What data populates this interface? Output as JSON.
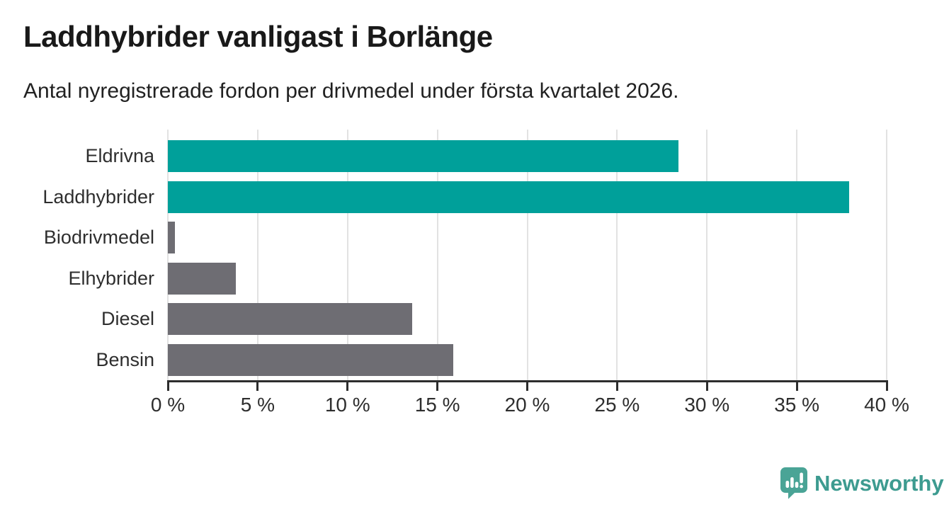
{
  "header": {
    "title": "Laddhybrider vanligast i Borlänge",
    "subtitle": "Antal nyregistrerade fordon per drivmedel under första kvartalet 2026."
  },
  "chart_data": {
    "type": "bar",
    "orientation": "horizontal",
    "title": "Laddhybrider vanligast i Borlänge",
    "subtitle": "Antal nyregistrerade fordon per drivmedel under första kvartalet 2026.",
    "categories": [
      "Eldrivna",
      "Laddhybrider",
      "Biodrivmedel",
      "Elhybrider",
      "Diesel",
      "Bensin"
    ],
    "values": [
      28.4,
      37.9,
      0.4,
      3.8,
      13.6,
      15.9
    ],
    "unit": "%",
    "xlim": [
      0,
      40
    ],
    "x_ticks": [
      0,
      5,
      10,
      15,
      20,
      25,
      30,
      35,
      40
    ],
    "x_tick_labels": [
      "0 %",
      "5 %",
      "10 %",
      "15 %",
      "20 %",
      "25 %",
      "30 %",
      "35 %",
      "40 %"
    ],
    "grid": true,
    "legend": "none",
    "bar_colors": [
      "#00a09a",
      "#00a09a",
      "#6e6d73",
      "#6e6d73",
      "#6e6d73",
      "#6e6d73"
    ],
    "highlight_color": "#00a09a",
    "default_color": "#6e6d73"
  },
  "footer": {
    "logo_text": "Newsworthy",
    "logo_icon": "newsworthy-bubble-chart-icon",
    "logo_text_color": "#3d9b90",
    "logo_icon_color": "#4aa496"
  },
  "colors": {
    "background": "#ffffff",
    "title_text": "#191919",
    "subtitle_text": "#212121",
    "axis_text": "#2e2e2e",
    "axis_line": "#2d2d2d",
    "gridline": "#e2e2e2"
  }
}
